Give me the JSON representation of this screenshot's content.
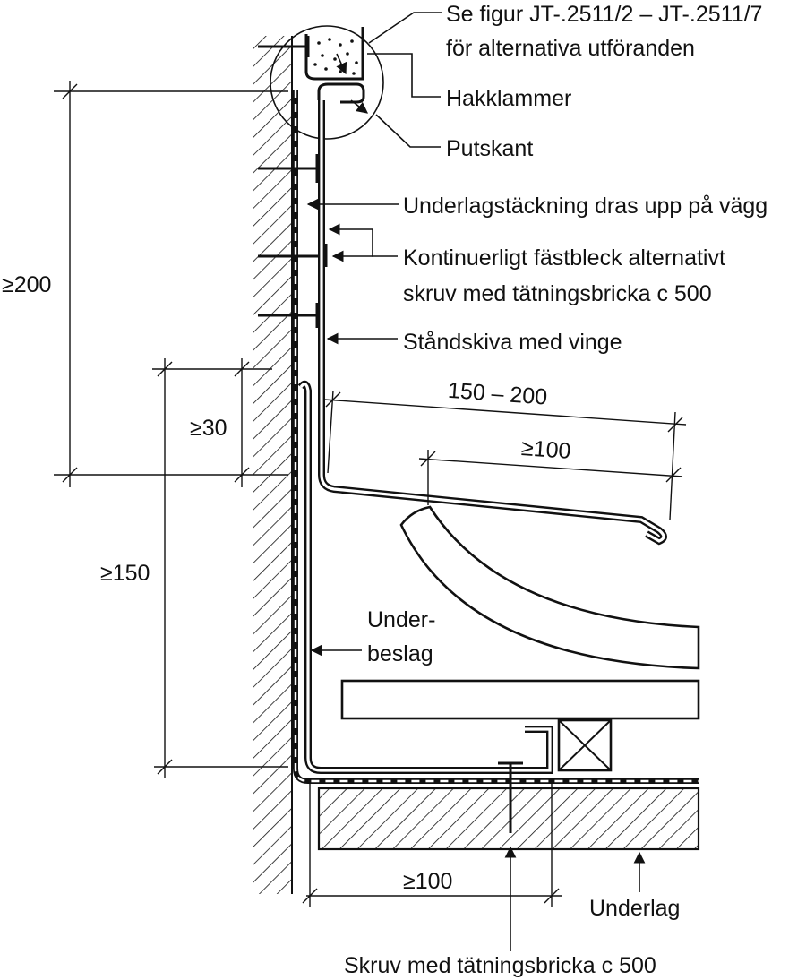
{
  "callouts": {
    "se_figur_line1": "Se figur JT-.2511/2 – JT-.2511/7",
    "se_figur_line2": "för alternativa utföranden",
    "hakklammer": "Hakklammer",
    "putskant": "Putskant",
    "underlagstackning": "Underlagstäckning dras upp på vägg",
    "kontinuerligt_line1": "Kontinuerligt fästbleck alternativt",
    "kontinuerligt_line2": "skruv med tätningsbricka c 500",
    "standskiva": "Ståndskiva med vinge",
    "underbeslag_line1": "Under-",
    "underbeslag_line2": "beslag",
    "underlag": "Underlag",
    "skruv": "Skruv med tätningsbricka c 500"
  },
  "dimensions": {
    "dim_200": "≥200",
    "dim_30": "≥30",
    "dim_150": "≥150",
    "dim_150_200": "150 – 200",
    "dim_100_top": "≥100",
    "dim_100_bottom": "≥100"
  },
  "colors": {
    "ink": "#111111",
    "background": "#ffffff"
  }
}
